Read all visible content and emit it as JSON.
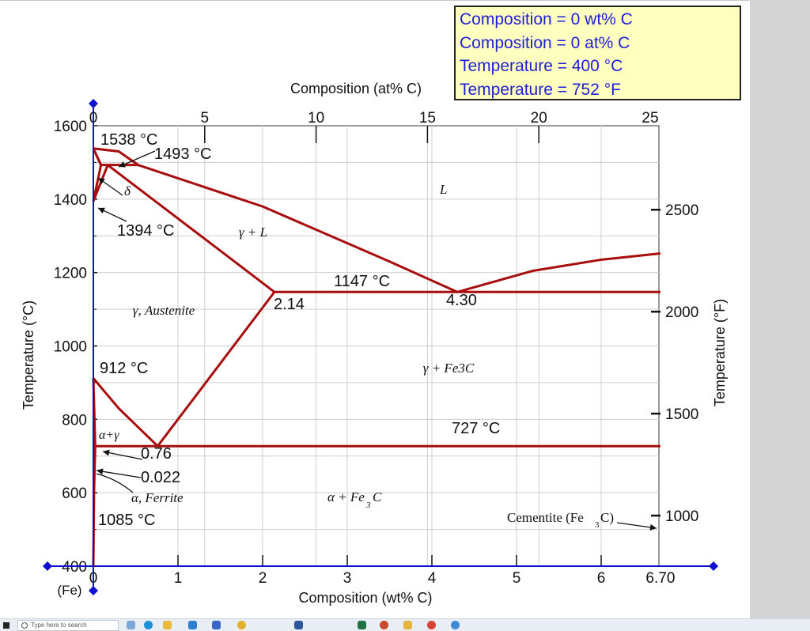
{
  "readout": {
    "lines": [
      "Composition = 0 wt% C",
      "Composition = 0 at% C",
      "Temperature = 400 °C",
      "Temperature = 752 °F"
    ]
  },
  "chart_data": {
    "type": "phase-diagram",
    "title": "",
    "xlabel_bottom": "Composition (wt% C)",
    "xlabel_top": "Composition (at% C)",
    "ylabel_left": "Temperature (°C)",
    "ylabel_right": "Temperature (°F)",
    "x_wt_range": [
      0,
      6.7
    ],
    "x_at_range": [
      0,
      25
    ],
    "y_range_c": [
      400,
      1600
    ],
    "grid": true,
    "x_bottom_ticks": [
      {
        "value": 0,
        "label": "0"
      },
      {
        "value": 1,
        "label": "1"
      },
      {
        "value": 2,
        "label": "2"
      },
      {
        "value": 3,
        "label": "3"
      },
      {
        "value": 4,
        "label": "4"
      },
      {
        "value": 5,
        "label": "5"
      },
      {
        "value": 6,
        "label": "6"
      },
      {
        "value": 6.7,
        "label": "6.70"
      }
    ],
    "x_bottom_extra": {
      "value": 0,
      "label": "(Fe)"
    },
    "x_top_ticks": [
      {
        "value": 0,
        "label": "0"
      },
      {
        "value": 5,
        "label": "5"
      },
      {
        "value": 10,
        "label": "10"
      },
      {
        "value": 15,
        "label": "15"
      },
      {
        "value": 20,
        "label": "20"
      },
      {
        "value": 25,
        "label": "25"
      }
    ],
    "y_left_ticks": [
      {
        "value": 400,
        "label": "400"
      },
      {
        "value": 600,
        "label": "600"
      },
      {
        "value": 800,
        "label": "800"
      },
      {
        "value": 1000,
        "label": "1000"
      },
      {
        "value": 1200,
        "label": "1200"
      },
      {
        "value": 1400,
        "label": "1400"
      },
      {
        "value": 1600,
        "label": "1600"
      }
    ],
    "y_right_ticks": [
      {
        "value": 1000,
        "label": "1000"
      },
      {
        "value": 1500,
        "label": "1500"
      },
      {
        "value": 2000,
        "label": "2000"
      },
      {
        "value": 2500,
        "label": "2500"
      }
    ],
    "phase_lines": [
      {
        "name": "liquidus-delta",
        "points": [
          [
            0,
            1538
          ],
          [
            0.09,
            1493
          ]
        ]
      },
      {
        "name": "liquidus-main",
        "points": [
          [
            0.53,
            1493
          ],
          [
            2.0,
            1380
          ],
          [
            3.5,
            1230
          ],
          [
            4.3,
            1147
          ]
        ]
      },
      {
        "name": "liquidus-hypereutectic",
        "points": [
          [
            4.3,
            1147
          ],
          [
            5.2,
            1205
          ],
          [
            6.0,
            1235
          ],
          [
            6.7,
            1252
          ]
        ]
      },
      {
        "name": "delta-solidus",
        "points": [
          [
            0,
            1538
          ],
          [
            0.09,
            1493
          ]
        ]
      },
      {
        "name": "delta-curve",
        "points": [
          [
            0,
            1538
          ],
          [
            0.3,
            1530
          ],
          [
            0.53,
            1493
          ]
        ]
      },
      {
        "name": "peritectic",
        "points": [
          [
            0.09,
            1493
          ],
          [
            0.53,
            1493
          ]
        ]
      },
      {
        "name": "delta-gamma-left",
        "points": [
          [
            0,
            1394
          ],
          [
            0.09,
            1493
          ]
        ]
      },
      {
        "name": "delta-gamma-right",
        "points": [
          [
            0,
            1394
          ],
          [
            0.17,
            1493
          ]
        ]
      },
      {
        "name": "gamma-solidus",
        "points": [
          [
            0.17,
            1493
          ],
          [
            2.14,
            1147
          ]
        ]
      },
      {
        "name": "eutectic",
        "points": [
          [
            2.14,
            1147
          ],
          [
            6.7,
            1147
          ]
        ]
      },
      {
        "name": "acm",
        "points": [
          [
            0.76,
            727
          ],
          [
            2.14,
            1147
          ]
        ]
      },
      {
        "name": "a3",
        "points": [
          [
            0,
            912
          ],
          [
            0.3,
            830
          ],
          [
            0.76,
            727
          ]
        ]
      },
      {
        "name": "alpha-boundary",
        "points": [
          [
            0,
            912
          ],
          [
            0.022,
            727
          ]
        ]
      },
      {
        "name": "eutectoid",
        "points": [
          [
            0.022,
            727
          ],
          [
            6.7,
            727
          ]
        ]
      },
      {
        "name": "alpha-solvus",
        "points": [
          [
            0.022,
            727
          ],
          [
            0.008,
            600
          ],
          [
            0,
            400
          ]
        ]
      }
    ],
    "annotations": [
      {
        "text": "1538 °C",
        "kind": "value"
      },
      {
        "text": "1493 °C",
        "kind": "value"
      },
      {
        "text": "1394 °C",
        "kind": "value"
      },
      {
        "text": "1147 °C",
        "kind": "value"
      },
      {
        "text": "2.14",
        "kind": "value"
      },
      {
        "text": "4.30",
        "kind": "value"
      },
      {
        "text": "912 °C",
        "kind": "value"
      },
      {
        "text": "727 °C",
        "kind": "value"
      },
      {
        "text": "0.76",
        "kind": "value"
      },
      {
        "text": "0.022",
        "kind": "value"
      },
      {
        "text": "1085 °C",
        "kind": "value"
      }
    ],
    "phase_labels": {
      "delta": "δ",
      "liquid": "L",
      "gamma_l": "γ + L",
      "austenite": "γ, Austenite",
      "gamma_fe3c": "γ + Fe3C",
      "alpha_gamma": "α+γ",
      "ferrite": "α, Ferrite",
      "alpha_fe3c_main": "α + Fe",
      "alpha_fe3c_sub": "3",
      "alpha_fe3c_tail": "C",
      "cementite_main": "Cementite (Fe",
      "cementite_sub": "3",
      "cementite_tail": "C)"
    },
    "cursor": {
      "wt": 0,
      "at": 0,
      "temp_c": 400,
      "temp_f": 752
    },
    "colors": {
      "phase_line": "#a80d0d",
      "axis_blue": "#1010d0",
      "grid": "#cfcfcf",
      "readout_text": "#1f1fd8",
      "readout_bg": "#ffffc0"
    }
  },
  "taskbar": {
    "search_placeholder": "Type here to search"
  }
}
